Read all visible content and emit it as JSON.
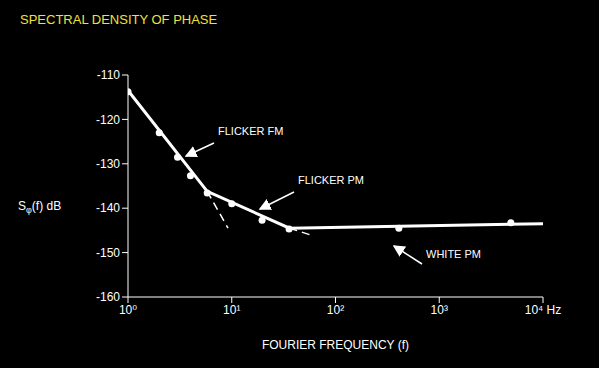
{
  "chart_data": {
    "type": "line",
    "title": "SPECTRAL DENSITY OF PHASE",
    "x_label": "FOURIER FREQUENCY (f)",
    "y_label": "Sφ(f) dB",
    "annotations": [
      "FLICKER FM",
      "FLICKER PM",
      "WHITE PM"
    ],
    "log": "x",
    "grid": false,
    "xlim": [
      1,
      10000
    ],
    "xticks": [
      {
        "value": 1,
        "label": "10⁰"
      },
      {
        "value": 10,
        "label": "10¹"
      },
      {
        "value": 100,
        "label": "10²"
      },
      {
        "value": 1000,
        "label": "10³"
      },
      {
        "value": 10000,
        "label": "10⁴ Hz"
      }
    ],
    "ylim": [
      -160,
      -110
    ],
    "yticks": [
      -160,
      -150,
      -140,
      -130,
      -120,
      -110
    ],
    "series": [
      {
        "type": "scatter",
        "color": "#ffffff",
        "marker": "circle",
        "x": [
          1,
          2,
          3,
          4,
          5.8,
          10,
          19.6,
          35.7,
          408,
          4900
        ],
        "values": [
          -113.8,
          -123,
          -128.5,
          -132.7,
          -136.6,
          -139,
          -142.7,
          -144.7,
          -144.5,
          -143.3
        ]
      },
      {
        "type": "line",
        "color": "#ffffff",
        "line_style": "solid",
        "x": [
          1,
          5.8,
          36,
          10000
        ],
        "values": [
          -113.5,
          -136.2,
          -144.5,
          -143.5
        ]
      },
      {
        "type": "line",
        "color": "#ffffff",
        "line_style": "dashed",
        "x": [
          5.8,
          9.2
        ],
        "values": [
          -136.2,
          -144.5
        ]
      },
      {
        "type": "line",
        "color": "#ffffff",
        "line_style": "dashed",
        "x": [
          36,
          57
        ],
        "values": [
          -144.5,
          -146
        ]
      }
    ]
  }
}
